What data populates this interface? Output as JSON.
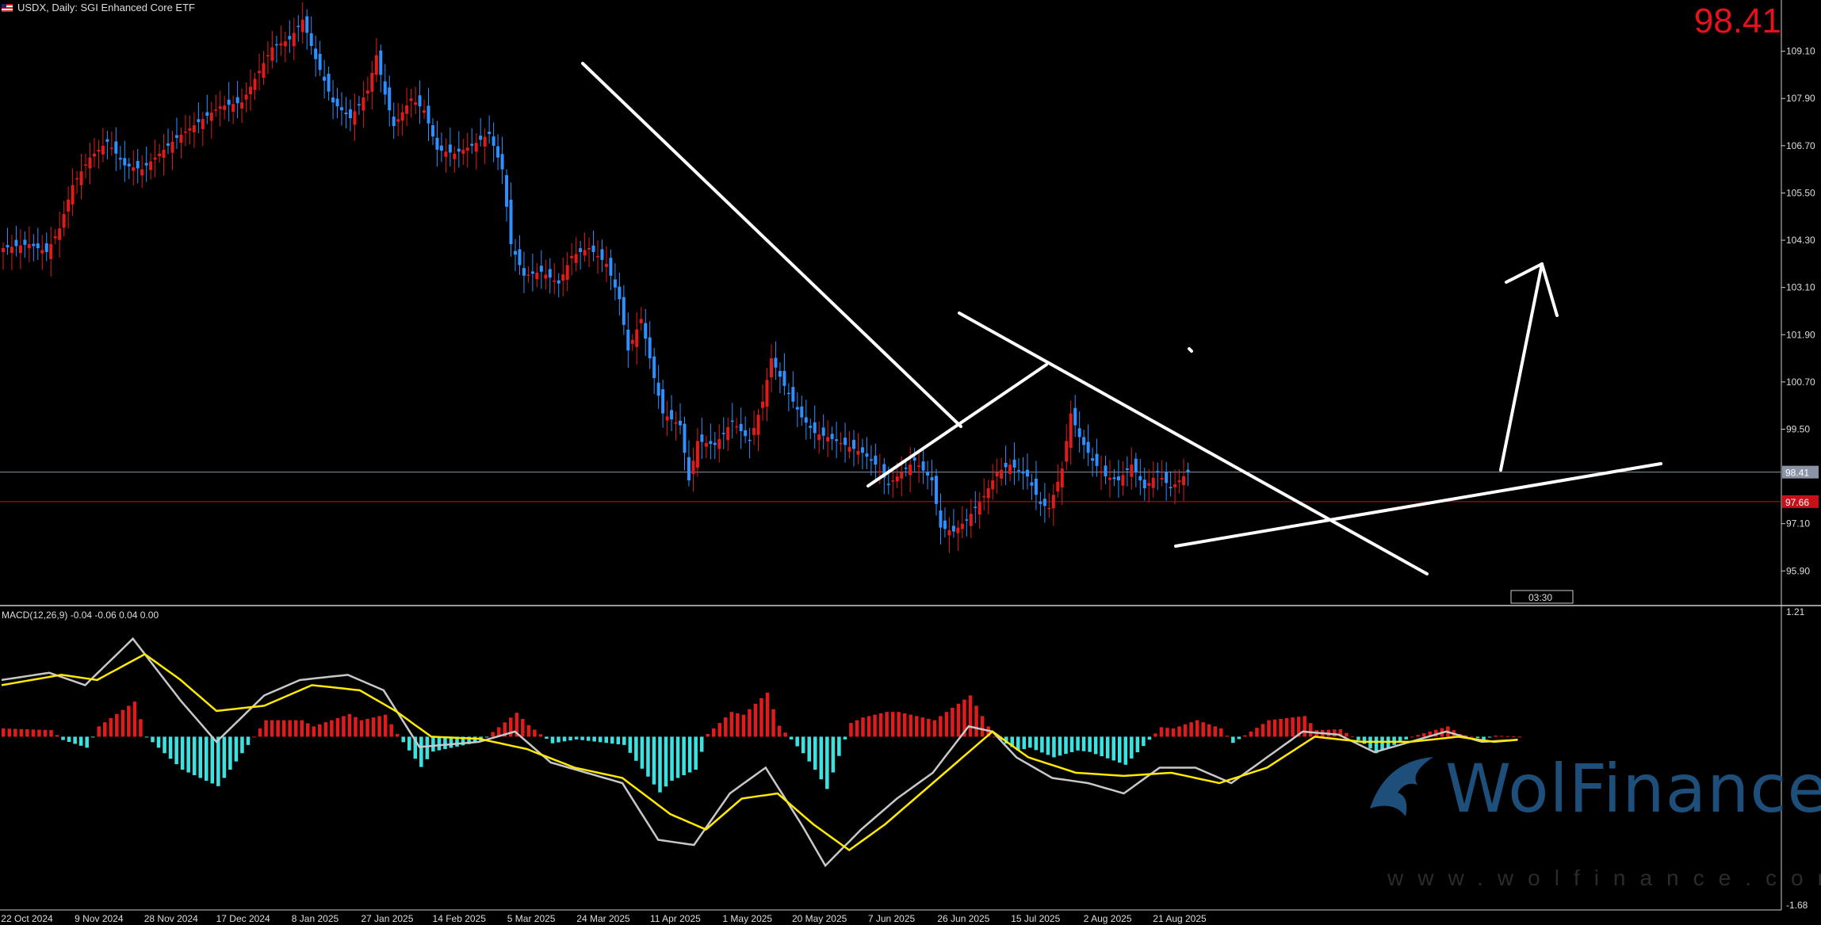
{
  "header": {
    "title": "USDX, Daily:  SGI Enhanced Core ETF",
    "price": "98.41"
  },
  "macd": {
    "label": "MACD(12,26,9) -0.04 -0.06 0.04 0.00",
    "axis_top": "1.21",
    "axis_bottom": "-1.68"
  },
  "watermark": {
    "brand": "WolFinance",
    "url": "www.wolfinance.com"
  },
  "misc": {
    "countdown": "03:30"
  },
  "colors": {
    "up": "#e01b1b",
    "down": "#2e90ff",
    "hist_pos": "#e01b1b",
    "hist_neg": "#3ce2e2",
    "macd_line": "#c8c8c8",
    "signal_line": "#ffea00",
    "trendline": "#ffffff",
    "price_line": "#8a94a6",
    "level_line": "#c8101a"
  },
  "chart_data": {
    "type": "candlestick",
    "symbol": "USDX",
    "timeframe": "Daily",
    "y_ticks": [
      "109.10",
      "107.90",
      "106.70",
      "105.50",
      "104.30",
      "103.10",
      "101.90",
      "100.70",
      "99.50",
      "97.10",
      "95.90"
    ],
    "ylim": [
      95.0,
      110.2
    ],
    "x_ticks": [
      "22 Oct 2024",
      "9 Nov 2024",
      "28 Nov 2024",
      "17 Dec 2024",
      "8 Jan 2025",
      "27 Jan 2025",
      "14 Feb 2025",
      "5 Mar 2025",
      "24 Mar 2025",
      "11 Apr 2025",
      "1 May 2025",
      "20 May 2025",
      "7 Jun 2025",
      "26 Jun 2025",
      "15 Jul 2025",
      "2 Aug 2025",
      "21 Aug 2025"
    ],
    "current_price": 98.41,
    "level_line": 97.66,
    "level_label": "97.66",
    "close_keypoints": [
      [
        0,
        104.1
      ],
      [
        6,
        104.2
      ],
      [
        10,
        104.0
      ],
      [
        13,
        104.6
      ],
      [
        16,
        105.7
      ],
      [
        20,
        106.4
      ],
      [
        24,
        106.8
      ],
      [
        28,
        106.2
      ],
      [
        32,
        106.1
      ],
      [
        36,
        106.5
      ],
      [
        40,
        106.9
      ],
      [
        45,
        107.3
      ],
      [
        50,
        107.7
      ],
      [
        55,
        107.8
      ],
      [
        58,
        108.4
      ],
      [
        62,
        109.2
      ],
      [
        66,
        109.4
      ],
      [
        69,
        109.9
      ],
      [
        72,
        108.9
      ],
      [
        76,
        107.8
      ],
      [
        80,
        107.4
      ],
      [
        84,
        108.1
      ],
      [
        86,
        109.0
      ],
      [
        88,
        108.0
      ],
      [
        90,
        107.2
      ],
      [
        94,
        107.9
      ],
      [
        97,
        107.6
      ],
      [
        100,
        106.6
      ],
      [
        104,
        106.5
      ],
      [
        108,
        106.7
      ],
      [
        112,
        107.0
      ],
      [
        115,
        106.1
      ],
      [
        117,
        104.2
      ],
      [
        120,
        103.4
      ],
      [
        124,
        103.5
      ],
      [
        128,
        103.2
      ],
      [
        131,
        103.9
      ],
      [
        135,
        104.1
      ],
      [
        139,
        103.7
      ],
      [
        142,
        102.8
      ],
      [
        144,
        101.5
      ],
      [
        147,
        102.3
      ],
      [
        150,
        100.8
      ],
      [
        152,
        99.9
      ],
      [
        156,
        99.6
      ],
      [
        158,
        98.2
      ],
      [
        160,
        99.2
      ],
      [
        164,
        99.1
      ],
      [
        168,
        99.7
      ],
      [
        172,
        99.2
      ],
      [
        175,
        100.2
      ],
      [
        177,
        101.3
      ],
      [
        180,
        100.6
      ],
      [
        184,
        99.8
      ],
      [
        187,
        99.4
      ],
      [
        190,
        99.3
      ],
      [
        194,
        99.1
      ],
      [
        198,
        98.9
      ],
      [
        201,
        98.6
      ],
      [
        204,
        98.1
      ],
      [
        207,
        98.4
      ],
      [
        210,
        98.7
      ],
      [
        214,
        98.2
      ],
      [
        216,
        97.0
      ],
      [
        219,
        96.9
      ],
      [
        222,
        97.2
      ],
      [
        226,
        97.8
      ],
      [
        229,
        98.4
      ],
      [
        232,
        98.6
      ],
      [
        236,
        98.3
      ],
      [
        239,
        97.6
      ],
      [
        241,
        97.5
      ],
      [
        244,
        98.5
      ],
      [
        246,
        99.9
      ],
      [
        248,
        99.3
      ],
      [
        251,
        98.7
      ],
      [
        254,
        98.3
      ],
      [
        257,
        98.2
      ],
      [
        260,
        98.6
      ],
      [
        263,
        98.0
      ],
      [
        266,
        98.4
      ],
      [
        269,
        98.0
      ],
      [
        271,
        98.2
      ],
      [
        273,
        98.41
      ]
    ],
    "macd_keypoints": [
      [
        0,
        0.55
      ],
      [
        8,
        0.62
      ],
      [
        14,
        0.5
      ],
      [
        22,
        0.95
      ],
      [
        30,
        0.35
      ],
      [
        36,
        -0.05
      ],
      [
        44,
        0.4
      ],
      [
        50,
        0.55
      ],
      [
        58,
        0.6
      ],
      [
        64,
        0.45
      ],
      [
        70,
        -0.1
      ],
      [
        80,
        -0.05
      ],
      [
        86,
        0.05
      ],
      [
        92,
        -0.25
      ],
      [
        98,
        -0.35
      ],
      [
        104,
        -0.45
      ],
      [
        110,
        -1.0
      ],
      [
        116,
        -1.05
      ],
      [
        122,
        -0.55
      ],
      [
        128,
        -0.3
      ],
      [
        134,
        -0.85
      ],
      [
        138,
        -1.25
      ],
      [
        144,
        -0.9
      ],
      [
        150,
        -0.6
      ],
      [
        156,
        -0.35
      ],
      [
        162,
        0.1
      ],
      [
        166,
        0.05
      ],
      [
        170,
        -0.2
      ],
      [
        176,
        -0.4
      ],
      [
        182,
        -0.45
      ],
      [
        188,
        -0.55
      ],
      [
        194,
        -0.3
      ],
      [
        200,
        -0.3
      ],
      [
        206,
        -0.45
      ],
      [
        212,
        -0.2
      ],
      [
        218,
        0.05
      ],
      [
        224,
        0.02
      ],
      [
        230,
        -0.15
      ],
      [
        236,
        -0.05
      ],
      [
        242,
        0.05
      ],
      [
        248,
        -0.05
      ],
      [
        254,
        -0.03
      ]
    ],
    "signal_keypoints": [
      [
        0,
        0.5
      ],
      [
        10,
        0.6
      ],
      [
        16,
        0.55
      ],
      [
        24,
        0.8
      ],
      [
        30,
        0.55
      ],
      [
        36,
        0.25
      ],
      [
        44,
        0.3
      ],
      [
        52,
        0.5
      ],
      [
        60,
        0.45
      ],
      [
        66,
        0.25
      ],
      [
        72,
        0.0
      ],
      [
        80,
        -0.02
      ],
      [
        88,
        -0.12
      ],
      [
        96,
        -0.3
      ],
      [
        104,
        -0.4
      ],
      [
        112,
        -0.75
      ],
      [
        118,
        -0.9
      ],
      [
        124,
        -0.6
      ],
      [
        130,
        -0.55
      ],
      [
        136,
        -0.85
      ],
      [
        142,
        -1.1
      ],
      [
        148,
        -0.85
      ],
      [
        154,
        -0.55
      ],
      [
        160,
        -0.25
      ],
      [
        166,
        0.05
      ],
      [
        172,
        -0.2
      ],
      [
        180,
        -0.35
      ],
      [
        188,
        -0.38
      ],
      [
        196,
        -0.35
      ],
      [
        204,
        -0.45
      ],
      [
        212,
        -0.3
      ],
      [
        220,
        0.0
      ],
      [
        228,
        -0.05
      ],
      [
        236,
        -0.05
      ],
      [
        244,
        0.0
      ],
      [
        250,
        -0.05
      ],
      [
        254,
        -0.03
      ]
    ],
    "macd_ylim": [
      -1.68,
      1.21
    ]
  }
}
